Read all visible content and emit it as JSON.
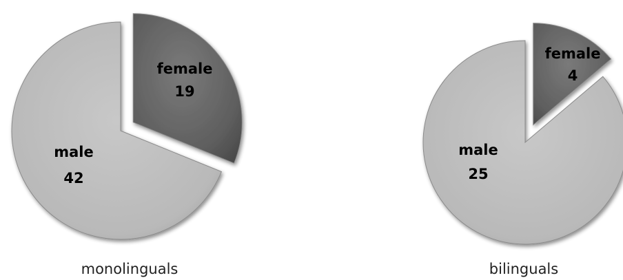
{
  "chart_data": [
    {
      "type": "pie",
      "title": "monolinguals",
      "exploded": "female",
      "slices": [
        {
          "label": "female",
          "value": 19,
          "color": "#6b6b6b"
        },
        {
          "label": "male",
          "value": 42,
          "color": "#bdbdbd"
        }
      ]
    },
    {
      "type": "pie",
      "title": "bilinguals",
      "exploded": "female",
      "slices": [
        {
          "label": "female",
          "value": 4,
          "color": "#6b6b6b"
        },
        {
          "label": "male",
          "value": 25,
          "color": "#bdbdbd"
        }
      ]
    }
  ]
}
